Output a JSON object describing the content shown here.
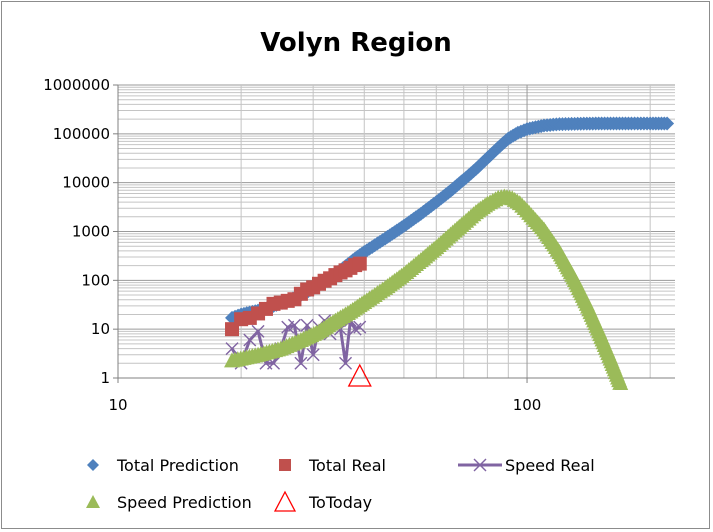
{
  "chart_data": {
    "type": "scatter",
    "title": "Volyn Region",
    "xlabel": "",
    "ylabel": "",
    "x_scale": "log",
    "y_scale": "log",
    "xlim": [
      10,
      230
    ],
    "ylim": [
      1,
      1000000
    ],
    "x_ticks": [
      {
        "value": 10,
        "label": "10"
      },
      {
        "value": 100,
        "label": "100"
      }
    ],
    "y_ticks": [
      {
        "value": 1,
        "label": "1"
      },
      {
        "value": 10,
        "label": "10"
      },
      {
        "value": 100,
        "label": "100"
      },
      {
        "value": 1000,
        "label": "1000"
      },
      {
        "value": 10000,
        "label": "10000"
      },
      {
        "value": 100000,
        "label": "100000"
      },
      {
        "value": 1000000,
        "label": "1000000"
      }
    ],
    "grid": true,
    "legend_position": "bottom",
    "series": [
      {
        "name": "Total Prediction",
        "marker": "diamond",
        "color": "#4f81bd",
        "points": [
          [
            19,
            17
          ],
          [
            20,
            20
          ],
          [
            22,
            24
          ],
          [
            24,
            30
          ],
          [
            26,
            38
          ],
          [
            28,
            50
          ],
          [
            30,
            68
          ],
          [
            32,
            95
          ],
          [
            34,
            135
          ],
          [
            36,
            195
          ],
          [
            38,
            280
          ],
          [
            40,
            380
          ],
          [
            45,
            720
          ],
          [
            50,
            1300
          ],
          [
            55,
            2300
          ],
          [
            60,
            4000
          ],
          [
            65,
            6800
          ],
          [
            70,
            11500
          ],
          [
            75,
            19000
          ],
          [
            80,
            32000
          ],
          [
            85,
            52000
          ],
          [
            90,
            80000
          ],
          [
            95,
            105000
          ],
          [
            100,
            125000
          ],
          [
            110,
            148000
          ],
          [
            120,
            158000
          ],
          [
            140,
            162000
          ],
          [
            160,
            163000
          ],
          [
            180,
            163000
          ],
          [
            200,
            163000
          ],
          [
            220,
            163000
          ]
        ]
      },
      {
        "name": "Total Real",
        "marker": "square",
        "color": "#c0504d",
        "points": [
          [
            19,
            10
          ],
          [
            20,
            16
          ],
          [
            21,
            17
          ],
          [
            22,
            21
          ],
          [
            23,
            26
          ],
          [
            24,
            33
          ],
          [
            25,
            35
          ],
          [
            26,
            38
          ],
          [
            27,
            41
          ],
          [
            28,
            53
          ],
          [
            29,
            65
          ],
          [
            30,
            72
          ],
          [
            31,
            85
          ],
          [
            32,
            98
          ],
          [
            33,
            110
          ],
          [
            34,
            128
          ],
          [
            35,
            145
          ],
          [
            36,
            160
          ],
          [
            37,
            180
          ],
          [
            38,
            205
          ],
          [
            39,
            220
          ]
        ]
      },
      {
        "name": "Speed Real",
        "marker": "x",
        "color": "#8064a2",
        "points": [
          [
            19,
            4
          ],
          [
            20,
            2
          ],
          [
            21,
            6
          ],
          [
            22,
            9
          ],
          [
            23,
            2
          ],
          [
            24,
            2
          ],
          [
            25,
            4
          ],
          [
            26,
            11
          ],
          [
            27,
            12
          ],
          [
            28,
            2
          ],
          [
            29,
            12
          ],
          [
            30,
            3
          ],
          [
            31,
            11
          ],
          [
            32,
            15
          ],
          [
            33,
            8
          ],
          [
            34,
            13
          ],
          [
            35,
            10
          ],
          [
            36,
            2
          ],
          [
            37,
            15
          ],
          [
            38,
            10
          ],
          [
            39,
            11
          ]
        ]
      },
      {
        "name": "Speed Prediction",
        "marker": "triangle",
        "color": "#9bbb59",
        "points": [
          [
            19,
            2.3
          ],
          [
            22,
            3
          ],
          [
            25,
            4
          ],
          [
            28,
            6
          ],
          [
            31,
            9
          ],
          [
            34,
            15
          ],
          [
            37,
            23
          ],
          [
            40,
            36
          ],
          [
            45,
            70
          ],
          [
            50,
            135
          ],
          [
            55,
            260
          ],
          [
            60,
            480
          ],
          [
            65,
            870
          ],
          [
            70,
            1500
          ],
          [
            75,
            2500
          ],
          [
            80,
            3700
          ],
          [
            85,
            4900
          ],
          [
            88,
            5200
          ],
          [
            92,
            4800
          ],
          [
            96,
            3800
          ],
          [
            100,
            2700
          ],
          [
            110,
            1100
          ],
          [
            120,
            380
          ],
          [
            130,
            115
          ],
          [
            140,
            33
          ],
          [
            150,
            9
          ],
          [
            160,
            2.5
          ],
          [
            170,
            0.7
          ]
        ]
      },
      {
        "name": "ToToday",
        "marker": "triangle-open",
        "color": "#ff0000",
        "points": [
          [
            39,
            1
          ]
        ]
      }
    ]
  }
}
